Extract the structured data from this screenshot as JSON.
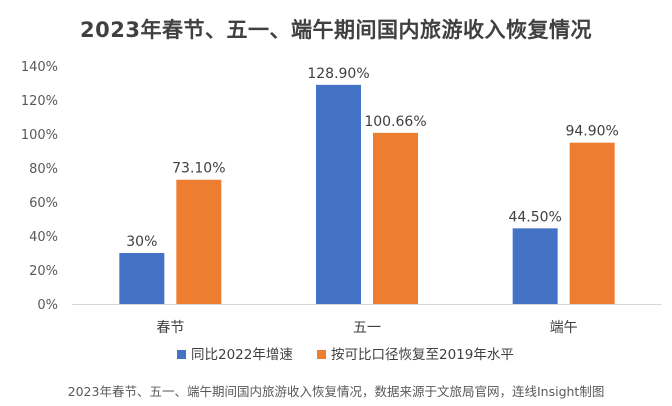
{
  "chart_data": {
    "type": "bar",
    "title": "2023年春节、五一、端午期间国内旅游收入恢复情况",
    "categories": [
      "春节",
      "五一",
      "端午"
    ],
    "series": [
      {
        "name": "同比2022年增速",
        "values": [
          30,
          128.9,
          44.5
        ],
        "labels": [
          "30%",
          "128.90%",
          "44.50%"
        ],
        "color": "#4472C4"
      },
      {
        "name": "按可比口径恢复至2019年水平",
        "values": [
          73.1,
          100.66,
          94.9
        ],
        "labels": [
          "73.10%",
          "100.66%",
          "94.90%"
        ],
        "color": "#ED7D31"
      }
    ],
    "yticks": [
      "0%",
      "20%",
      "40%",
      "60%",
      "80%",
      "100%",
      "120%",
      "140%"
    ],
    "ylim": [
      0,
      140
    ],
    "xlabel": "",
    "ylabel": "",
    "grid": false,
    "legend_position": "bottom"
  },
  "caption": "2023年春节、五一、端午期间国内旅游收入恢复情况，数据来源于文旅局官网，连线Insight制图"
}
